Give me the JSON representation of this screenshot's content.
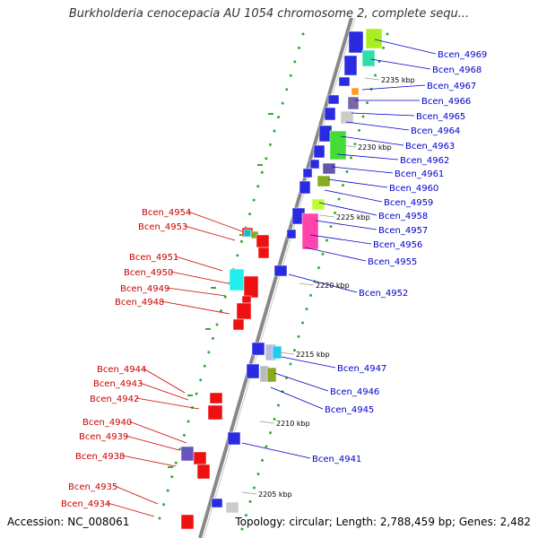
{
  "title": "Burkholderia cenocepacia AU 1054 chromosome 2, complete sequ...",
  "accession": "Accession: NC_008061",
  "topology": "Topology: circular; Length: 2,788,459 bp; Genes: 2,482",
  "colors": {
    "forward_label": "#0000cc",
    "reverse_label": "#cc0000",
    "backbone": "#888888",
    "tick": "#33aa33"
  },
  "kbp_labels": [
    "2235 kbp",
    "2230 kbp",
    "2225 kbp",
    "2220 kbp",
    "2215 kbp",
    "2210 kbp",
    "2205 kbp"
  ],
  "genes_forward": [
    "Bcen_4969",
    "Bcen_4968",
    "Bcen_4967",
    "Bcen_4966",
    "Bcen_4965",
    "Bcen_4964",
    "Bcen_4963",
    "Bcen_4962",
    "Bcen_4961",
    "Bcen_4960",
    "Bcen_4959",
    "Bcen_4958",
    "Bcen_4957",
    "Bcen_4956",
    "Bcen_4955",
    "Bcen_4952",
    "Bcen_4947",
    "Bcen_4946",
    "Bcen_4945",
    "Bcen_4941"
  ],
  "genes_reverse": [
    "Bcen_4954",
    "Bcen_4953",
    "Bcen_4951",
    "Bcen_4950",
    "Bcen_4949",
    "Bcen_4948",
    "Bcen_4944",
    "Bcen_4943",
    "Bcen_4942",
    "Bcen_4940",
    "Bcen_4939",
    "Bcen_4938",
    "Bcen_4935",
    "Bcen_4934"
  ]
}
